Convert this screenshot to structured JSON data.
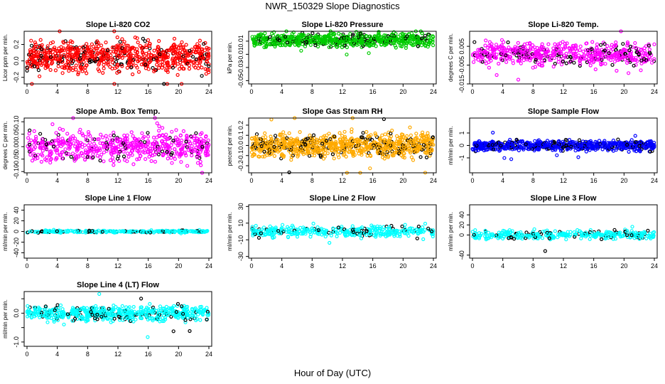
{
  "title": "NWR_150329  Slope Diagnostics",
  "xlabel": "Hour of Day (UTC)",
  "chart_data": [
    {
      "type": "scatter",
      "title": "Slope Li-820 CO2",
      "ylabel": "Licor ppm per min.",
      "color": "#ff0000",
      "xlim": [
        0,
        24
      ],
      "xticks": [
        0,
        4,
        8,
        12,
        16,
        20,
        24
      ],
      "ylim": [
        -0.28,
        0.36
      ],
      "yticks": [
        -0.2,
        0.0,
        0.2
      ],
      "yticklabels": [
        "-0.2",
        "0.0",
        "0.2"
      ],
      "spread": 0.11,
      "center": 0.05,
      "n": 800,
      "seed": 11
    },
    {
      "type": "scatter",
      "title": "Slope Li-820 Pressure",
      "ylabel": "kPa per min.",
      "color": "#00cc00",
      "xlim": [
        0,
        24
      ],
      "xticks": [
        0,
        4,
        8,
        12,
        16,
        20,
        24
      ],
      "ylim": [
        -0.055,
        0.025
      ],
      "yticks": [
        -0.05,
        -0.03,
        -0.01,
        0.01
      ],
      "yticklabels": [
        "-0.05",
        "-0.03",
        "-0.01",
        "0.01"
      ],
      "spread": 0.006,
      "center": 0.012,
      "n": 700,
      "seed": 23
    },
    {
      "type": "scatter",
      "title": "Slope Li-820 Temp.",
      "ylabel": "degrees C per min.",
      "color": "#ff00ff",
      "xlim": [
        0,
        24
      ],
      "xticks": [
        0,
        4,
        8,
        12,
        16,
        20,
        24
      ],
      "ylim": [
        -0.015,
        0.013
      ],
      "yticks": [
        -0.015,
        -0.005,
        0.005
      ],
      "yticklabels": [
        "-0.015",
        "-0.005",
        "0.005"
      ],
      "spread": 0.0035,
      "center": 0.001,
      "n": 600,
      "seed": 37
    },
    {
      "type": "scatter",
      "title": "Slope Amb. Box Temp.",
      "ylabel": "degrees C per min.",
      "color": "#ff00ff",
      "xlim": [
        0,
        24
      ],
      "xticks": [
        0,
        4,
        8,
        12,
        16,
        20,
        24
      ],
      "ylim": [
        -0.105,
        0.115
      ],
      "yticks": [
        -0.1,
        -0.05,
        0.0,
        0.05,
        0.1
      ],
      "yticklabels": [
        "-0.10",
        "-0.05",
        "0.00",
        "0.05",
        "0.10"
      ],
      "spread": 0.035,
      "center": 0.0,
      "n": 600,
      "seed": 41
    },
    {
      "type": "scatter",
      "title": "Slope Gas Stream RH",
      "ylabel": "percent per min.",
      "color": "#ffaa00",
      "xlim": [
        0,
        24
      ],
      "xticks": [
        0,
        4,
        8,
        12,
        16,
        20,
        24
      ],
      "ylim": [
        -0.27,
        0.27
      ],
      "yticks": [
        -0.2,
        -0.1,
        0.0,
        0.1,
        0.2
      ],
      "yticklabels": [
        "-0.2",
        "-0.1",
        "0.0",
        "0.1",
        "0.2"
      ],
      "spread": 0.07,
      "center": 0.0,
      "n": 900,
      "seed": 53
    },
    {
      "type": "scatter",
      "title": "Slope Sample Flow",
      "ylabel": "ml/min per min.",
      "color": "#0000ff",
      "xlim": [
        0,
        24
      ],
      "xticks": [
        0,
        4,
        8,
        12,
        16,
        20,
        24
      ],
      "ylim": [
        -2.2,
        2.2
      ],
      "yticks": [
        -1,
        0,
        1
      ],
      "yticklabels": [
        "-1",
        "0",
        "1"
      ],
      "spread": 0.25,
      "center": 0.0,
      "n": 700,
      "seed": 67
    },
    {
      "type": "scatter",
      "title": "Slope Line 1 Flow",
      "ylabel": "ml/min per min.",
      "color": "#00ffff",
      "xlim": [
        0,
        24
      ],
      "xticks": [
        0,
        4,
        8,
        12,
        16,
        20,
        24
      ],
      "ylim": [
        -50,
        50
      ],
      "yticks": [
        -40,
        -20,
        0,
        20,
        40
      ],
      "yticklabels": [
        "-40",
        "-20",
        "0",
        "20",
        "40"
      ],
      "spread": 1.2,
      "center": 0.0,
      "n": 280,
      "seed": 71
    },
    {
      "type": "scatter",
      "title": "Slope Line 2 Flow",
      "ylabel": "ml/min per min.",
      "color": "#00ffff",
      "xlim": [
        0,
        24
      ],
      "xticks": [
        0,
        4,
        8,
        12,
        16,
        20,
        24
      ],
      "ylim": [
        -32,
        32
      ],
      "yticks": [
        -30,
        -10,
        10,
        30
      ],
      "yticklabels": [
        "-30",
        "-10",
        "10",
        "30"
      ],
      "spread": 4.0,
      "center": 0.0,
      "n": 380,
      "seed": 83
    },
    {
      "type": "scatter",
      "title": "Slope Line 3 Flow",
      "ylabel": "ml/min per min.",
      "color": "#00ffff",
      "xlim": [
        0,
        24
      ],
      "xticks": [
        0,
        4,
        8,
        12,
        16,
        20,
        24
      ],
      "ylim": [
        -46,
        60
      ],
      "yticks": [
        -40,
        0,
        20,
        40
      ],
      "yticklabels": [
        "-40",
        "0",
        "20",
        "40"
      ],
      "spread": 5.0,
      "center": 0.0,
      "n": 380,
      "seed": 97
    },
    {
      "type": "scatter",
      "title": "Slope Line 4 (LT) Flow",
      "ylabel": "ml/min per min.",
      "color": "#00ffff",
      "xlim": [
        0,
        24
      ],
      "xticks": [
        0,
        4,
        8,
        12,
        16,
        20,
        24
      ],
      "ylim": [
        -1.15,
        0.75
      ],
      "yticks": [
        -1.0,
        -0.5,
        0.0,
        0.5
      ],
      "yticklabels": [
        "-1.0",
        "",
        "0.0",
        ""
      ],
      "spread": 0.15,
      "center": 0.0,
      "n": 600,
      "seed": 101
    }
  ]
}
